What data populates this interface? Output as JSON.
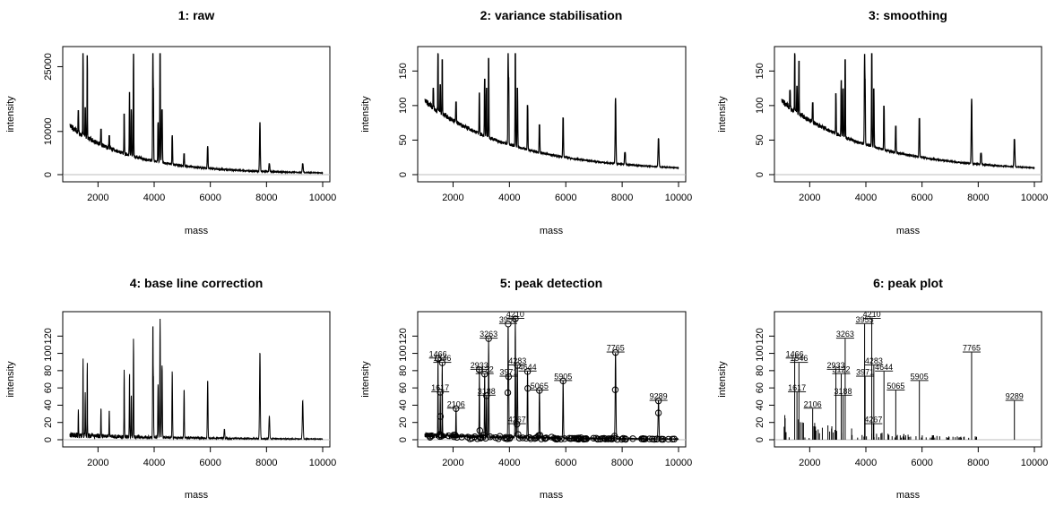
{
  "chart_data": [
    {
      "type": "line",
      "title": "1: raw",
      "xlabel": "mass",
      "ylabel": "intensity",
      "xlim": [
        1000,
        10000
      ],
      "ylim": [
        0,
        28000
      ],
      "x_ticks": [
        2000,
        4000,
        6000,
        8000,
        10000
      ],
      "y_ticks": [
        0,
        10000,
        25000
      ],
      "baseline": 11000,
      "decay": 0.00045,
      "floor": 200,
      "peaks": [
        {
          "mass": 1300,
          "value": 14800
        },
        {
          "mass": 1466,
          "value": 31500
        },
        {
          "mass": 1546,
          "value": 15500
        },
        {
          "mass": 1617,
          "value": 27500
        },
        {
          "mass": 2106,
          "value": 10500
        },
        {
          "mass": 2400,
          "value": 9000
        },
        {
          "mass": 2933,
          "value": 14000
        },
        {
          "mass": 3122,
          "value": 19000
        },
        {
          "mass": 3188,
          "value": 15000
        },
        {
          "mass": 3263,
          "value": 28000
        },
        {
          "mass": 3955,
          "value": 31000
        },
        {
          "mass": 3971,
          "value": 20000
        },
        {
          "mass": 4140,
          "value": 12000
        },
        {
          "mass": 4210,
          "value": 32500
        },
        {
          "mass": 4267,
          "value": 9000
        },
        {
          "mass": 4283,
          "value": 15000
        },
        {
          "mass": 4644,
          "value": 9000
        },
        {
          "mass": 5065,
          "value": 4800
        },
        {
          "mass": 5905,
          "value": 6500
        },
        {
          "mass": 7765,
          "value": 12000
        },
        {
          "mass": 8100,
          "value": 2500
        },
        {
          "mass": 9289,
          "value": 2500
        }
      ]
    },
    {
      "type": "line",
      "title": "2: variance stabilisation",
      "xlabel": "mass",
      "ylabel": "intensity",
      "xlim": [
        1000,
        10000
      ],
      "ylim": [
        0,
        175
      ],
      "x_ticks": [
        2000,
        4000,
        6000,
        8000,
        10000
      ],
      "y_ticks": [
        0,
        50,
        100,
        150
      ],
      "baseline": 105,
      "decay": 0.00032,
      "floor": 4,
      "peaks": [
        {
          "mass": 1300,
          "value": 125
        },
        {
          "mass": 1466,
          "value": 178
        },
        {
          "mass": 1546,
          "value": 130
        },
        {
          "mass": 1617,
          "value": 166
        },
        {
          "mass": 2106,
          "value": 105
        },
        {
          "mass": 2933,
          "value": 118
        },
        {
          "mass": 3122,
          "value": 138
        },
        {
          "mass": 3188,
          "value": 125
        },
        {
          "mass": 3263,
          "value": 168
        },
        {
          "mass": 3955,
          "value": 176
        },
        {
          "mass": 3971,
          "value": 140
        },
        {
          "mass": 4210,
          "value": 180
        },
        {
          "mass": 4283,
          "value": 125
        },
        {
          "mass": 4644,
          "value": 100
        },
        {
          "mass": 5065,
          "value": 72
        },
        {
          "mass": 5905,
          "value": 82
        },
        {
          "mass": 7765,
          "value": 110
        },
        {
          "mass": 8100,
          "value": 32
        },
        {
          "mass": 9289,
          "value": 52
        }
      ]
    },
    {
      "type": "line",
      "title": "3: smoothing",
      "xlabel": "mass",
      "ylabel": "intensity",
      "xlim": [
        1000,
        10000
      ],
      "ylim": [
        0,
        175
      ],
      "x_ticks": [
        2000,
        4000,
        6000,
        8000,
        10000
      ],
      "y_ticks": [
        0,
        50,
        100,
        150
      ],
      "baseline": 105,
      "decay": 0.00032,
      "floor": 4,
      "peaks": [
        {
          "mass": 1300,
          "value": 122
        },
        {
          "mass": 1466,
          "value": 175
        },
        {
          "mass": 1546,
          "value": 128
        },
        {
          "mass": 1617,
          "value": 164
        },
        {
          "mass": 2106,
          "value": 104
        },
        {
          "mass": 2933,
          "value": 117
        },
        {
          "mass": 3122,
          "value": 136
        },
        {
          "mass": 3188,
          "value": 124
        },
        {
          "mass": 3263,
          "value": 166
        },
        {
          "mass": 3955,
          "value": 174
        },
        {
          "mass": 3971,
          "value": 138
        },
        {
          "mass": 4210,
          "value": 178
        },
        {
          "mass": 4283,
          "value": 124
        },
        {
          "mass": 4644,
          "value": 99
        },
        {
          "mass": 5065,
          "value": 70
        },
        {
          "mass": 5905,
          "value": 81
        },
        {
          "mass": 7765,
          "value": 109
        },
        {
          "mass": 8100,
          "value": 31
        },
        {
          "mass": 9289,
          "value": 51
        }
      ]
    },
    {
      "type": "line",
      "title": "4: base line correction",
      "xlabel": "mass",
      "ylabel": "intensity",
      "xlim": [
        1000,
        10000
      ],
      "ylim": [
        0,
        140
      ],
      "x_ticks": [
        2000,
        4000,
        6000,
        8000,
        10000
      ],
      "y_ticks": [
        0,
        20,
        40,
        60,
        80,
        100,
        120
      ],
      "baseline": 4,
      "decay": 0.0002,
      "floor": 0,
      "peaks": [
        {
          "mass": 1300,
          "value": 35
        },
        {
          "mass": 1466,
          "value": 94
        },
        {
          "mass": 1546,
          "value": 55
        },
        {
          "mass": 1617,
          "value": 89
        },
        {
          "mass": 2106,
          "value": 36
        },
        {
          "mass": 2400,
          "value": 33
        },
        {
          "mass": 2933,
          "value": 81
        },
        {
          "mass": 3122,
          "value": 76
        },
        {
          "mass": 3188,
          "value": 51
        },
        {
          "mass": 3263,
          "value": 117
        },
        {
          "mass": 3955,
          "value": 134
        },
        {
          "mass": 3971,
          "value": 73
        },
        {
          "mass": 4140,
          "value": 64
        },
        {
          "mass": 4210,
          "value": 140
        },
        {
          "mass": 4267,
          "value": 18
        },
        {
          "mass": 4283,
          "value": 86
        },
        {
          "mass": 4644,
          "value": 79
        },
        {
          "mass": 5065,
          "value": 57
        },
        {
          "mass": 5905,
          "value": 68
        },
        {
          "mass": 6500,
          "value": 12
        },
        {
          "mass": 7765,
          "value": 101
        },
        {
          "mass": 8100,
          "value": 27
        },
        {
          "mass": 9289,
          "value": 45
        }
      ]
    },
    {
      "type": "scatter",
      "title": "5: peak detection",
      "xlabel": "mass",
      "ylabel": "intensity",
      "xlim": [
        1000,
        10000
      ],
      "ylim": [
        0,
        140
      ],
      "x_ticks": [
        2000,
        4000,
        6000,
        8000,
        10000
      ],
      "y_ticks": [
        0,
        20,
        40,
        60,
        80,
        100,
        120
      ],
      "baseline": 4,
      "decay": 0.0002,
      "floor": 0,
      "peaks": [
        {
          "mass": 1466,
          "value": 94
        },
        {
          "mass": 1546,
          "value": 55
        },
        {
          "mass": 1617,
          "value": 89
        },
        {
          "mass": 2106,
          "value": 36
        },
        {
          "mass": 2933,
          "value": 81
        },
        {
          "mass": 3122,
          "value": 76
        },
        {
          "mass": 3188,
          "value": 51
        },
        {
          "mass": 3263,
          "value": 117
        },
        {
          "mass": 3955,
          "value": 134
        },
        {
          "mass": 3971,
          "value": 73
        },
        {
          "mass": 4210,
          "value": 140
        },
        {
          "mass": 4267,
          "value": 18
        },
        {
          "mass": 4283,
          "value": 86
        },
        {
          "mass": 4644,
          "value": 79
        },
        {
          "mass": 5065,
          "value": 57
        },
        {
          "mass": 5905,
          "value": 68
        },
        {
          "mass": 7765,
          "value": 101
        },
        {
          "mass": 9289,
          "value": 45
        }
      ],
      "labels": [
        "1466",
        "1617",
        "1546",
        "2106",
        "2933",
        "3122",
        "3188",
        "3263",
        "3955",
        "3971",
        "4210",
        "4267",
        "4283",
        "4644",
        "5065",
        "5905",
        "7765",
        "9289"
      ]
    },
    {
      "type": "bar",
      "title": "6: peak plot",
      "xlabel": "mass",
      "ylabel": "intensity",
      "xlim": [
        1000,
        10000
      ],
      "ylim": [
        0,
        140
      ],
      "x_ticks": [
        2000,
        4000,
        6000,
        8000,
        10000
      ],
      "y_ticks": [
        0,
        20,
        40,
        60,
        80,
        100,
        120
      ],
      "baseline": 4,
      "decay": 0.0002,
      "floor": 0,
      "peaks": [
        {
          "mass": 1466,
          "value": 94
        },
        {
          "mass": 1546,
          "value": 55
        },
        {
          "mass": 1617,
          "value": 89
        },
        {
          "mass": 2106,
          "value": 36
        },
        {
          "mass": 2933,
          "value": 81
        },
        {
          "mass": 3122,
          "value": 76
        },
        {
          "mass": 3188,
          "value": 51
        },
        {
          "mass": 3263,
          "value": 117
        },
        {
          "mass": 3955,
          "value": 134
        },
        {
          "mass": 3971,
          "value": 73
        },
        {
          "mass": 4210,
          "value": 140
        },
        {
          "mass": 4267,
          "value": 18
        },
        {
          "mass": 4283,
          "value": 86
        },
        {
          "mass": 4644,
          "value": 79
        },
        {
          "mass": 5065,
          "value": 57
        },
        {
          "mass": 5905,
          "value": 68
        },
        {
          "mass": 7765,
          "value": 101
        },
        {
          "mass": 9289,
          "value": 45
        }
      ],
      "labels": [
        "1466",
        "1617",
        "1546",
        "2106",
        "2933",
        "3122",
        "3188",
        "3263",
        "3955",
        "3971",
        "4210",
        "4267",
        "4283",
        "4644",
        "5065",
        "5905",
        "7765",
        "9289"
      ]
    }
  ]
}
